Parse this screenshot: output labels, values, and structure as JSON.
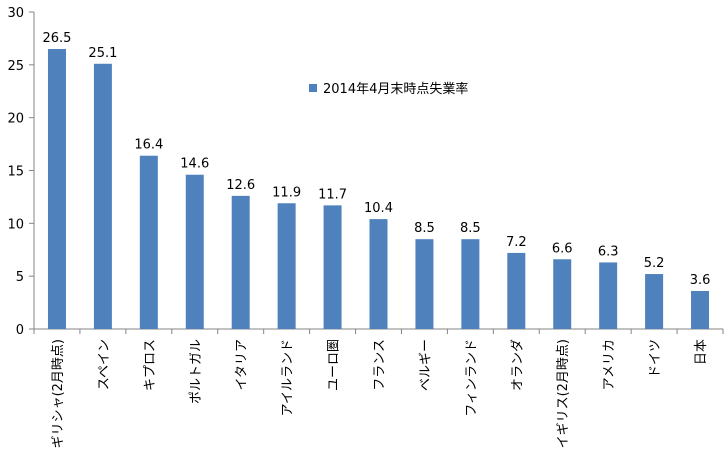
{
  "chart_data": {
    "type": "bar",
    "categories": [
      "ギリシャ(2月時点)",
      "スペイン",
      "キプロス",
      "ポルトガル",
      "イタリア",
      "アイルランド",
      "ユーロ圏",
      "フランス",
      "ベルギー",
      "フィンランド",
      "オランダ",
      "イギリス(2月時点)",
      "アメリカ",
      "ドイツ",
      "日本"
    ],
    "series": [
      {
        "name": "2014年4月末時点失業率",
        "values": [
          26.5,
          25.1,
          16.4,
          14.6,
          12.6,
          11.9,
          11.7,
          10.4,
          8.5,
          8.5,
          7.2,
          6.6,
          6.3,
          5.2,
          3.6
        ],
        "color": "#4F81BD"
      }
    ],
    "data_labels": [
      "26.5",
      "25.1",
      "16.4",
      "14.6",
      "12.6",
      "11.9",
      "11.7",
      "10.4",
      "8.5",
      "8.5",
      "7.2",
      "6.6",
      "6.3",
      "5.2",
      "3.6"
    ],
    "y_ticks": [
      "0",
      "5",
      "10",
      "15",
      "20",
      "25",
      "30"
    ],
    "y_tick_values": [
      0,
      5,
      10,
      15,
      20,
      25,
      30
    ],
    "ylim": [
      0,
      30
    ],
    "grid": false,
    "legend_position": "top-right"
  }
}
